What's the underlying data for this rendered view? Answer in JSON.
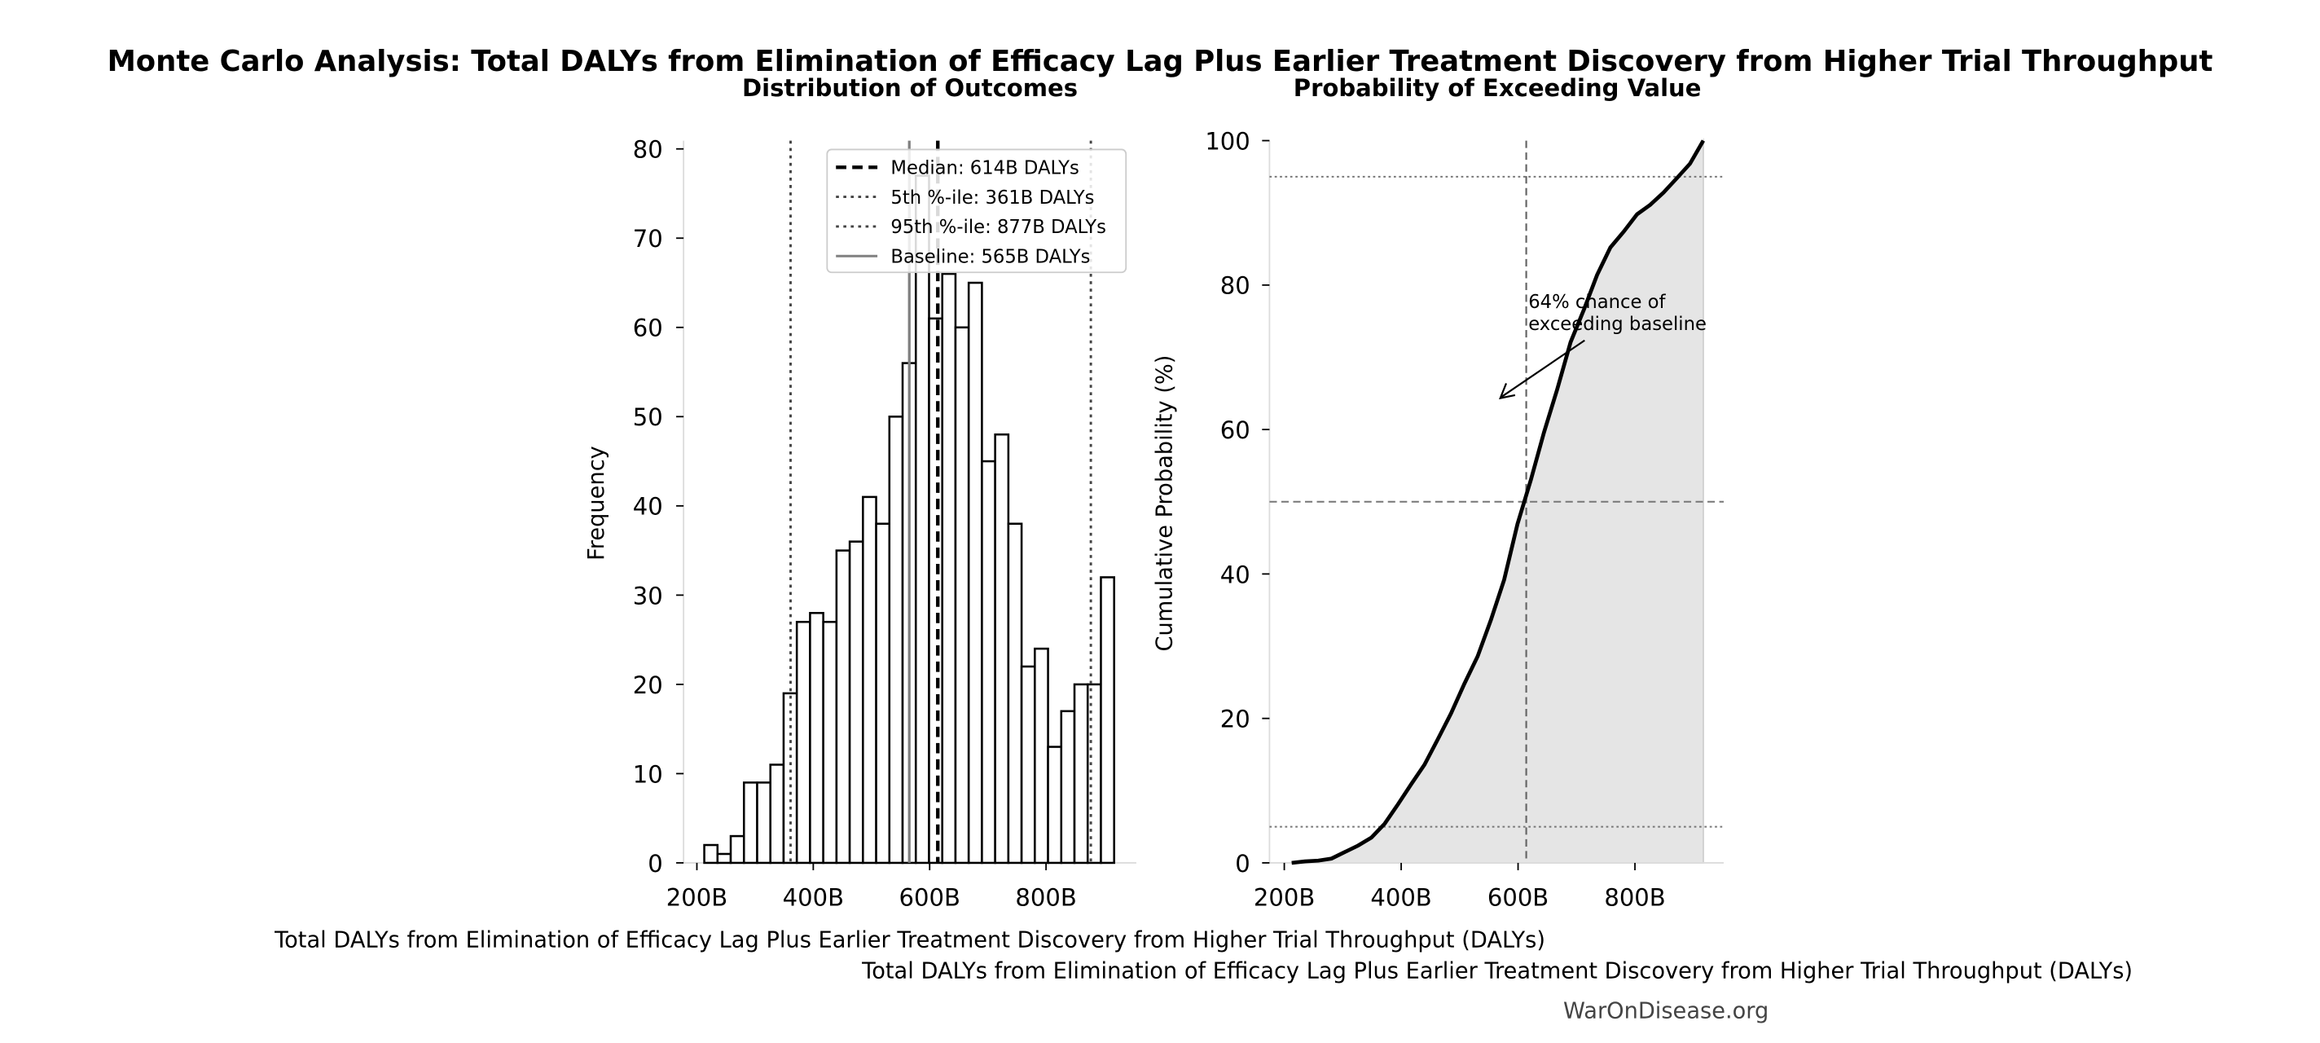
{
  "title": "Monte Carlo Analysis: Total DALYs from Elimination of Efficacy Lag Plus Earlier Treatment Discovery from Higher Trial Throughput",
  "watermark": "WarOnDisease.org",
  "chart_data": [
    {
      "type": "bar",
      "title": "Distribution of Outcomes",
      "xlabel": "Total DALYs from Elimination of Efficacy Lag Plus Earlier Treatment Discovery from Higher Trial Throughput (DALYs)",
      "ylabel": "Frequency",
      "xlim": [
        180,
        940
      ],
      "ylim": [
        0,
        81
      ],
      "x_ticks": [
        "200B",
        "400B",
        "600B",
        "800B"
      ],
      "x_tick_values": [
        200,
        400,
        600,
        800
      ],
      "y_ticks": [
        "0",
        "10",
        "20",
        "30",
        "40",
        "50",
        "60",
        "70",
        "80"
      ],
      "bin_start": 212.7,
      "bin_width": 22.72,
      "values": [
        2,
        1,
        3,
        9,
        9,
        11,
        19,
        27,
        28,
        27,
        35,
        36,
        41,
        38,
        50,
        56,
        77,
        61,
        66,
        60,
        65,
        45,
        48,
        38,
        22,
        24,
        13,
        17,
        20,
        20,
        32
      ],
      "reference_lines": [
        {
          "label": "Median: 614B DALYs",
          "value": 614,
          "style": "dashed",
          "color": "#000000"
        },
        {
          "label": "5th %-ile: 361B DALYs",
          "value": 361,
          "style": "dotted",
          "color": "#444444"
        },
        {
          "label": "95th %-ile: 877B DALYs",
          "value": 877,
          "style": "dotted",
          "color": "#444444"
        },
        {
          "label": "Baseline: 565B DALYs",
          "value": 565,
          "style": "solid",
          "color": "#808080"
        }
      ],
      "legend": "top-right",
      "grid": false
    },
    {
      "type": "line",
      "title": "Probability of Exceeding Value",
      "xlabel": "Total DALYs from Elimination of Efficacy Lag Plus Earlier Treatment Discovery from Higher Trial Throughput (DALYs)",
      "ylabel": "Cumulative Probability (%)",
      "xlim": [
        175,
        940
      ],
      "ylim": [
        0,
        100
      ],
      "x_ticks": [
        "200B",
        "400B",
        "600B",
        "800B"
      ],
      "x_tick_values": [
        200,
        400,
        600,
        800
      ],
      "y_ticks": [
        "0",
        "20",
        "40",
        "60",
        "80",
        "100"
      ],
      "series_from_histogram": true,
      "horizontal_lines": [
        95,
        50,
        5
      ],
      "vertical_line": 614,
      "annotation": {
        "line1": "64% chance of",
        "line2": "exceeding baseline"
      },
      "grid": false
    }
  ]
}
